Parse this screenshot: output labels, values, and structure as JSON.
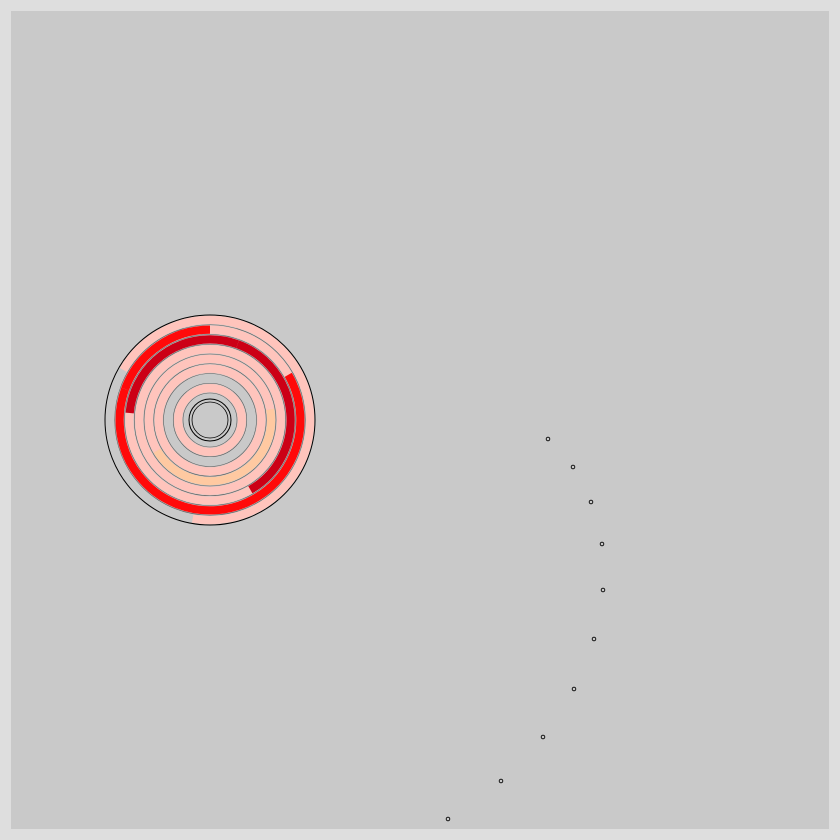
{
  "board": {
    "background": "#c9c9c9",
    "border_color": "#dedede",
    "outline_color": "#000000"
  },
  "colors": {
    "red": "#ff0a0a",
    "dark_red": "#cc0016",
    "pink": "#ffc4bc",
    "peach": "#ffc9a1",
    "gray": "#c9c9c9"
  },
  "maze": {
    "rings": [
      {
        "segments": [
          {
            "from": 0,
            "to": 360,
            "color": "#ffc4bc"
          }
        ]
      },
      {
        "segments": [
          {
            "from": 0,
            "to": 360,
            "color": "#c9c9c9"
          }
        ]
      },
      {
        "segments": [
          {
            "from": 0,
            "to": 360,
            "color": "#ffc4bc"
          }
        ]
      },
      {
        "segments": [
          {
            "from": 0,
            "to": 80,
            "color": "#ffc4bc"
          },
          {
            "from": 80,
            "to": 240,
            "color": "#ffc9a1"
          },
          {
            "from": 240,
            "to": 360,
            "color": "#ffc4bc"
          }
        ]
      },
      {
        "segments": [
          {
            "from": 0,
            "to": 360,
            "color": "#ffc4bc"
          }
        ]
      },
      {
        "segments": [
          {
            "from": 0,
            "to": 20,
            "color": "#cc0016"
          },
          {
            "from": 20,
            "to": 150,
            "color": "#cc0016"
          },
          {
            "from": 150,
            "to": 210,
            "color": "#ffc4bc"
          },
          {
            "from": 210,
            "to": 275,
            "color": "#ffc4bc"
          },
          {
            "from": 275,
            "to": 360,
            "color": "#cc0016"
          }
        ]
      },
      {
        "segments": [
          {
            "from": 0,
            "to": 60,
            "color": "#ffc4bc"
          },
          {
            "from": 60,
            "to": 290,
            "color": "#ff0a0a"
          },
          {
            "from": 290,
            "to": 360,
            "color": "#ff0a0a"
          }
        ]
      },
      {
        "segments": [
          {
            "from": 0,
            "to": 190,
            "color": "#ffc4bc"
          },
          {
            "from": 190,
            "to": 300,
            "color": "#c9c9c9"
          },
          {
            "from": 300,
            "to": 360,
            "color": "#ffc4bc"
          }
        ]
      }
    ]
  },
  "trail": {
    "count": 10
  }
}
